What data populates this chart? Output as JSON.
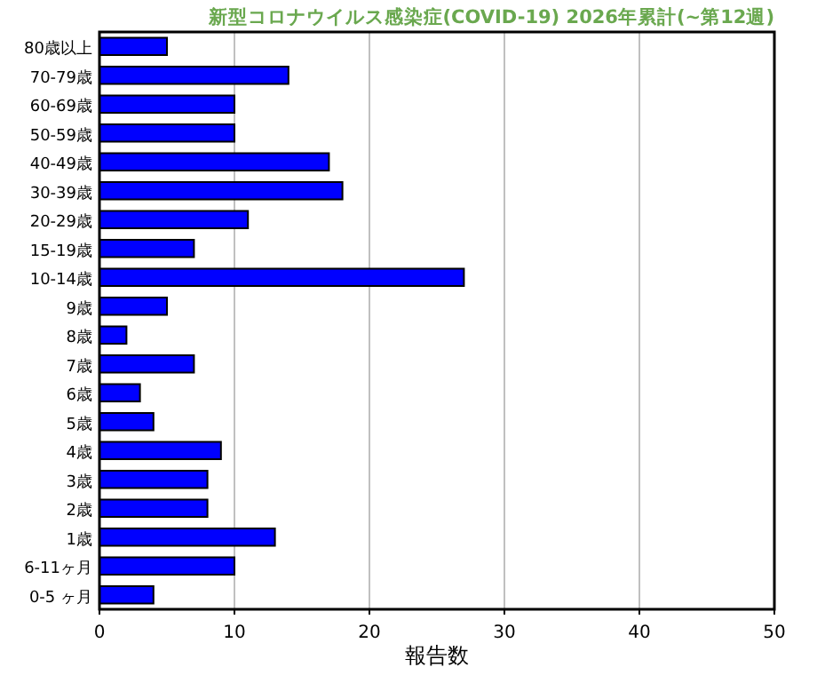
{
  "chart_data": {
    "type": "bar",
    "orientation": "horizontal",
    "title": "新型コロナウイルス感染症(COVID-19) 2026年累計(~第12週)",
    "xlabel": "報告数",
    "categories": [
      "80歳以上",
      "70-79歳",
      "60-69歳",
      "50-59歳",
      "40-49歳",
      "30-39歳",
      "20-29歳",
      "15-19歳",
      "10-14歳",
      "9歳",
      "8歳",
      "7歳",
      "6歳",
      "5歳",
      "4歳",
      "3歳",
      "2歳",
      "1歳",
      "6-11ヶ月",
      "0-5 ヶ月"
    ],
    "values": [
      5,
      14,
      10,
      10,
      17,
      18,
      11,
      7,
      27,
      5,
      2,
      7,
      3,
      4,
      9,
      8,
      8,
      13,
      10,
      4
    ],
    "color": "#0000ff",
    "xlim": [
      0,
      50
    ],
    "xticks": [
      0,
      10,
      20,
      30,
      40,
      50
    ],
    "grid": "x"
  }
}
